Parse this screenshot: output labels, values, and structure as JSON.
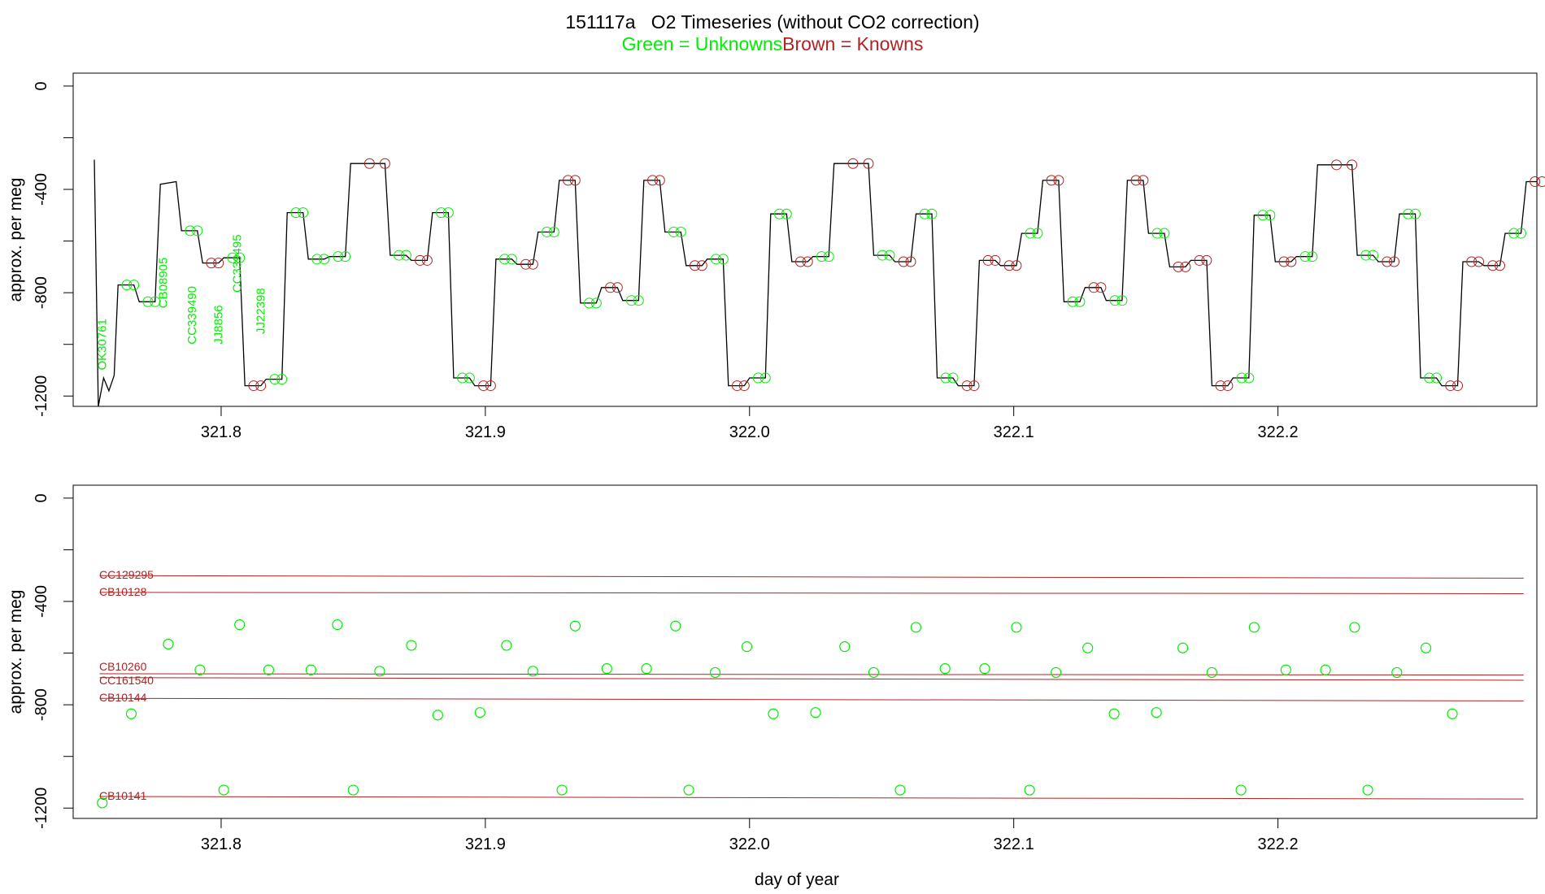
{
  "title": "151117a   O2 Timeseries (without CO2 correction)",
  "subtitle": {
    "unknowns": "Green = Unknowns",
    "knowns": "Brown = Knowns"
  },
  "colors": {
    "unknown": "#00ee00",
    "known": "#b22222",
    "trace": "#000000"
  },
  "chart_data": [
    {
      "type": "line",
      "panel": "top",
      "ylabel": "approx. per meg",
      "xlabel": "",
      "xlim": [
        321.744,
        322.298
      ],
      "ylim": [
        -1240,
        50
      ],
      "x_ticks": [
        "321.8",
        "321.9",
        "322.0",
        "322.1",
        "322.2"
      ],
      "y_ticks": [
        "0",
        "-400",
        "-800",
        "-1200"
      ],
      "unknown_labels": [
        "OK30761",
        "CB08905",
        "CC339490",
        "JJ8856",
        "CC339495",
        "JJ22398"
      ],
      "series": [
        {
          "values": [
            [
              321.752,
              -285
            ],
            [
              321.7535,
              -1240
            ],
            [
              321.7555,
              -1130
            ],
            [
              321.7575,
              -1180
            ],
            [
              321.7595,
              -1120
            ],
            [
              321.761,
              -770
            ],
            [
              321.767,
              -770
            ],
            [
              321.769,
              -835
            ],
            [
              321.775,
              -835
            ],
            [
              321.777,
              -380
            ],
            [
              321.783,
              -370
            ],
            [
              321.785,
              -560
            ],
            [
              321.791,
              -560
            ],
            [
              321.793,
              -685
            ],
            [
              321.799,
              -685
            ],
            [
              321.801,
              -665
            ],
            [
              321.807,
              -665
            ],
            [
              321.809,
              -1160
            ],
            [
              321.815,
              -1160
            ],
            [
              321.817,
              -1135
            ],
            [
              321.823,
              -1135
            ],
            [
              321.825,
              -490
            ],
            [
              321.831,
              -490
            ],
            [
              321.833,
              -670
            ],
            [
              321.839,
              -670
            ],
            [
              321.841,
              -660
            ],
            [
              321.847,
              -660
            ],
            [
              321.849,
              -300
            ],
            [
              321.862,
              -300
            ],
            [
              321.864,
              -655
            ],
            [
              321.87,
              -655
            ],
            [
              321.872,
              -675
            ],
            [
              321.878,
              -675
            ],
            [
              321.88,
              -490
            ],
            [
              321.886,
              -490
            ],
            [
              321.888,
              -1130
            ],
            [
              321.894,
              -1130
            ],
            [
              321.896,
              -1160
            ],
            [
              321.902,
              -1160
            ],
            [
              321.904,
              -670
            ],
            [
              321.91,
              -670
            ],
            [
              321.912,
              -690
            ],
            [
              321.918,
              -690
            ],
            [
              321.92,
              -565
            ],
            [
              321.926,
              -565
            ],
            [
              321.928,
              -365
            ],
            [
              321.934,
              -365
            ],
            [
              321.936,
              -840
            ],
            [
              321.942,
              -840
            ],
            [
              321.944,
              -780
            ],
            [
              321.95,
              -780
            ],
            [
              321.952,
              -830
            ],
            [
              321.958,
              -830
            ],
            [
              321.96,
              -365
            ],
            [
              321.966,
              -365
            ],
            [
              321.968,
              -565
            ],
            [
              321.974,
              -565
            ],
            [
              321.976,
              -695
            ],
            [
              321.982,
              -695
            ],
            [
              321.984,
              -670
            ],
            [
              321.99,
              -670
            ],
            [
              321.992,
              -1160
            ],
            [
              321.998,
              -1160
            ],
            [
              322.0,
              -1130
            ],
            [
              322.006,
              -1130
            ],
            [
              322.008,
              -495
            ],
            [
              322.014,
              -495
            ],
            [
              322.016,
              -680
            ],
            [
              322.022,
              -680
            ],
            [
              322.024,
              -660
            ],
            [
              322.03,
              -660
            ],
            [
              322.032,
              -300
            ],
            [
              322.045,
              -300
            ],
            [
              322.047,
              -655
            ],
            [
              322.053,
              -655
            ],
            [
              322.055,
              -680
            ],
            [
              322.061,
              -680
            ],
            [
              322.063,
              -495
            ],
            [
              322.069,
              -495
            ],
            [
              322.071,
              -1130
            ],
            [
              322.077,
              -1130
            ],
            [
              322.079,
              -1160
            ],
            [
              322.085,
              -1160
            ],
            [
              322.087,
              -675
            ],
            [
              322.093,
              -675
            ],
            [
              322.095,
              -695
            ],
            [
              322.101,
              -695
            ],
            [
              322.103,
              -570
            ],
            [
              322.109,
              -570
            ],
            [
              322.111,
              -365
            ],
            [
              322.117,
              -365
            ],
            [
              322.119,
              -835
            ],
            [
              322.125,
              -835
            ],
            [
              322.127,
              -780
            ],
            [
              322.133,
              -780
            ],
            [
              322.135,
              -830
            ],
            [
              322.141,
              -830
            ],
            [
              322.143,
              -365
            ],
            [
              322.149,
              -365
            ],
            [
              322.151,
              -570
            ],
            [
              322.157,
              -570
            ],
            [
              322.159,
              -700
            ],
            [
              322.165,
              -700
            ],
            [
              322.167,
              -675
            ],
            [
              322.173,
              -675
            ],
            [
              322.175,
              -1160
            ],
            [
              322.181,
              -1160
            ],
            [
              322.183,
              -1130
            ],
            [
              322.189,
              -1130
            ],
            [
              322.191,
              -500
            ],
            [
              322.197,
              -500
            ],
            [
              322.199,
              -680
            ],
            [
              322.205,
              -680
            ],
            [
              322.207,
              -660
            ],
            [
              322.213,
              -660
            ],
            [
              322.215,
              -305
            ],
            [
              322.228,
              -305
            ],
            [
              322.23,
              -655
            ],
            [
              322.236,
              -655
            ],
            [
              322.238,
              -680
            ],
            [
              322.244,
              -680
            ],
            [
              322.246,
              -495
            ],
            [
              322.252,
              -495
            ],
            [
              322.254,
              -1130
            ],
            [
              322.26,
              -1130
            ],
            [
              322.262,
              -1160
            ],
            [
              322.268,
              -1160
            ],
            [
              322.27,
              -680
            ],
            [
              322.276,
              -680
            ],
            [
              322.278,
              -695
            ],
            [
              322.284,
              -695
            ],
            [
              322.286,
              -570
            ],
            [
              322.292,
              -570
            ],
            [
              322.294,
              -370
            ],
            [
              322.3,
              -370
            ]
          ]
        }
      ]
    },
    {
      "type": "scatter",
      "panel": "bottom",
      "ylabel": "approx. per meg",
      "xlabel": "day of year",
      "xlim": [
        321.744,
        322.298
      ],
      "ylim": [
        -1240,
        50
      ],
      "x_ticks": [
        "321.8",
        "321.9",
        "322.0",
        "322.1",
        "322.2"
      ],
      "y_ticks": [
        "0",
        "-400",
        "-800",
        "-1200"
      ],
      "known_lines": [
        {
          "name": "CC129295",
          "y_start": -300,
          "y_end": -310
        },
        {
          "name": "CB10128",
          "y_start": -365,
          "y_end": -370
        },
        {
          "name": "CB10260",
          "y_start": -680,
          "y_end": -685
        },
        {
          "name": "CC161540",
          "y_start": -695,
          "y_end": -705
        },
        {
          "name": "CB10144",
          "y_start": -775,
          "y_end": -785
        },
        {
          "name": "CB10141",
          "y_start": -1155,
          "y_end": -1165
        }
      ],
      "unknown_points": [
        [
          321.755,
          -1180
        ],
        [
          321.766,
          -835
        ],
        [
          321.78,
          -565
        ],
        [
          321.792,
          -665
        ],
        [
          321.801,
          -1130
        ],
        [
          321.807,
          -490
        ],
        [
          321.818,
          -665
        ],
        [
          321.834,
          -665
        ],
        [
          321.844,
          -490
        ],
        [
          321.85,
          -1130
        ],
        [
          321.86,
          -670
        ],
        [
          321.872,
          -570
        ],
        [
          321.882,
          -840
        ],
        [
          321.898,
          -830
        ],
        [
          321.908,
          -570
        ],
        [
          321.918,
          -670
        ],
        [
          321.929,
          -1130
        ],
        [
          321.934,
          -495
        ],
        [
          321.946,
          -660
        ],
        [
          321.961,
          -660
        ],
        [
          321.972,
          -495
        ],
        [
          321.977,
          -1130
        ],
        [
          321.987,
          -675
        ],
        [
          321.999,
          -575
        ],
        [
          322.009,
          -835
        ],
        [
          322.025,
          -830
        ],
        [
          322.036,
          -575
        ],
        [
          322.047,
          -675
        ],
        [
          322.057,
          -1130
        ],
        [
          322.063,
          -500
        ],
        [
          322.074,
          -660
        ],
        [
          322.089,
          -660
        ],
        [
          322.101,
          -500
        ],
        [
          322.106,
          -1130
        ],
        [
          322.116,
          -675
        ],
        [
          322.128,
          -580
        ],
        [
          322.138,
          -835
        ],
        [
          322.154,
          -830
        ],
        [
          322.164,
          -580
        ],
        [
          322.175,
          -675
        ],
        [
          322.186,
          -1130
        ],
        [
          322.191,
          -500
        ],
        [
          322.203,
          -665
        ],
        [
          322.218,
          -665
        ],
        [
          322.229,
          -500
        ],
        [
          322.234,
          -1130
        ],
        [
          322.245,
          -675
        ],
        [
          322.256,
          -580
        ],
        [
          322.266,
          -835
        ]
      ]
    }
  ]
}
